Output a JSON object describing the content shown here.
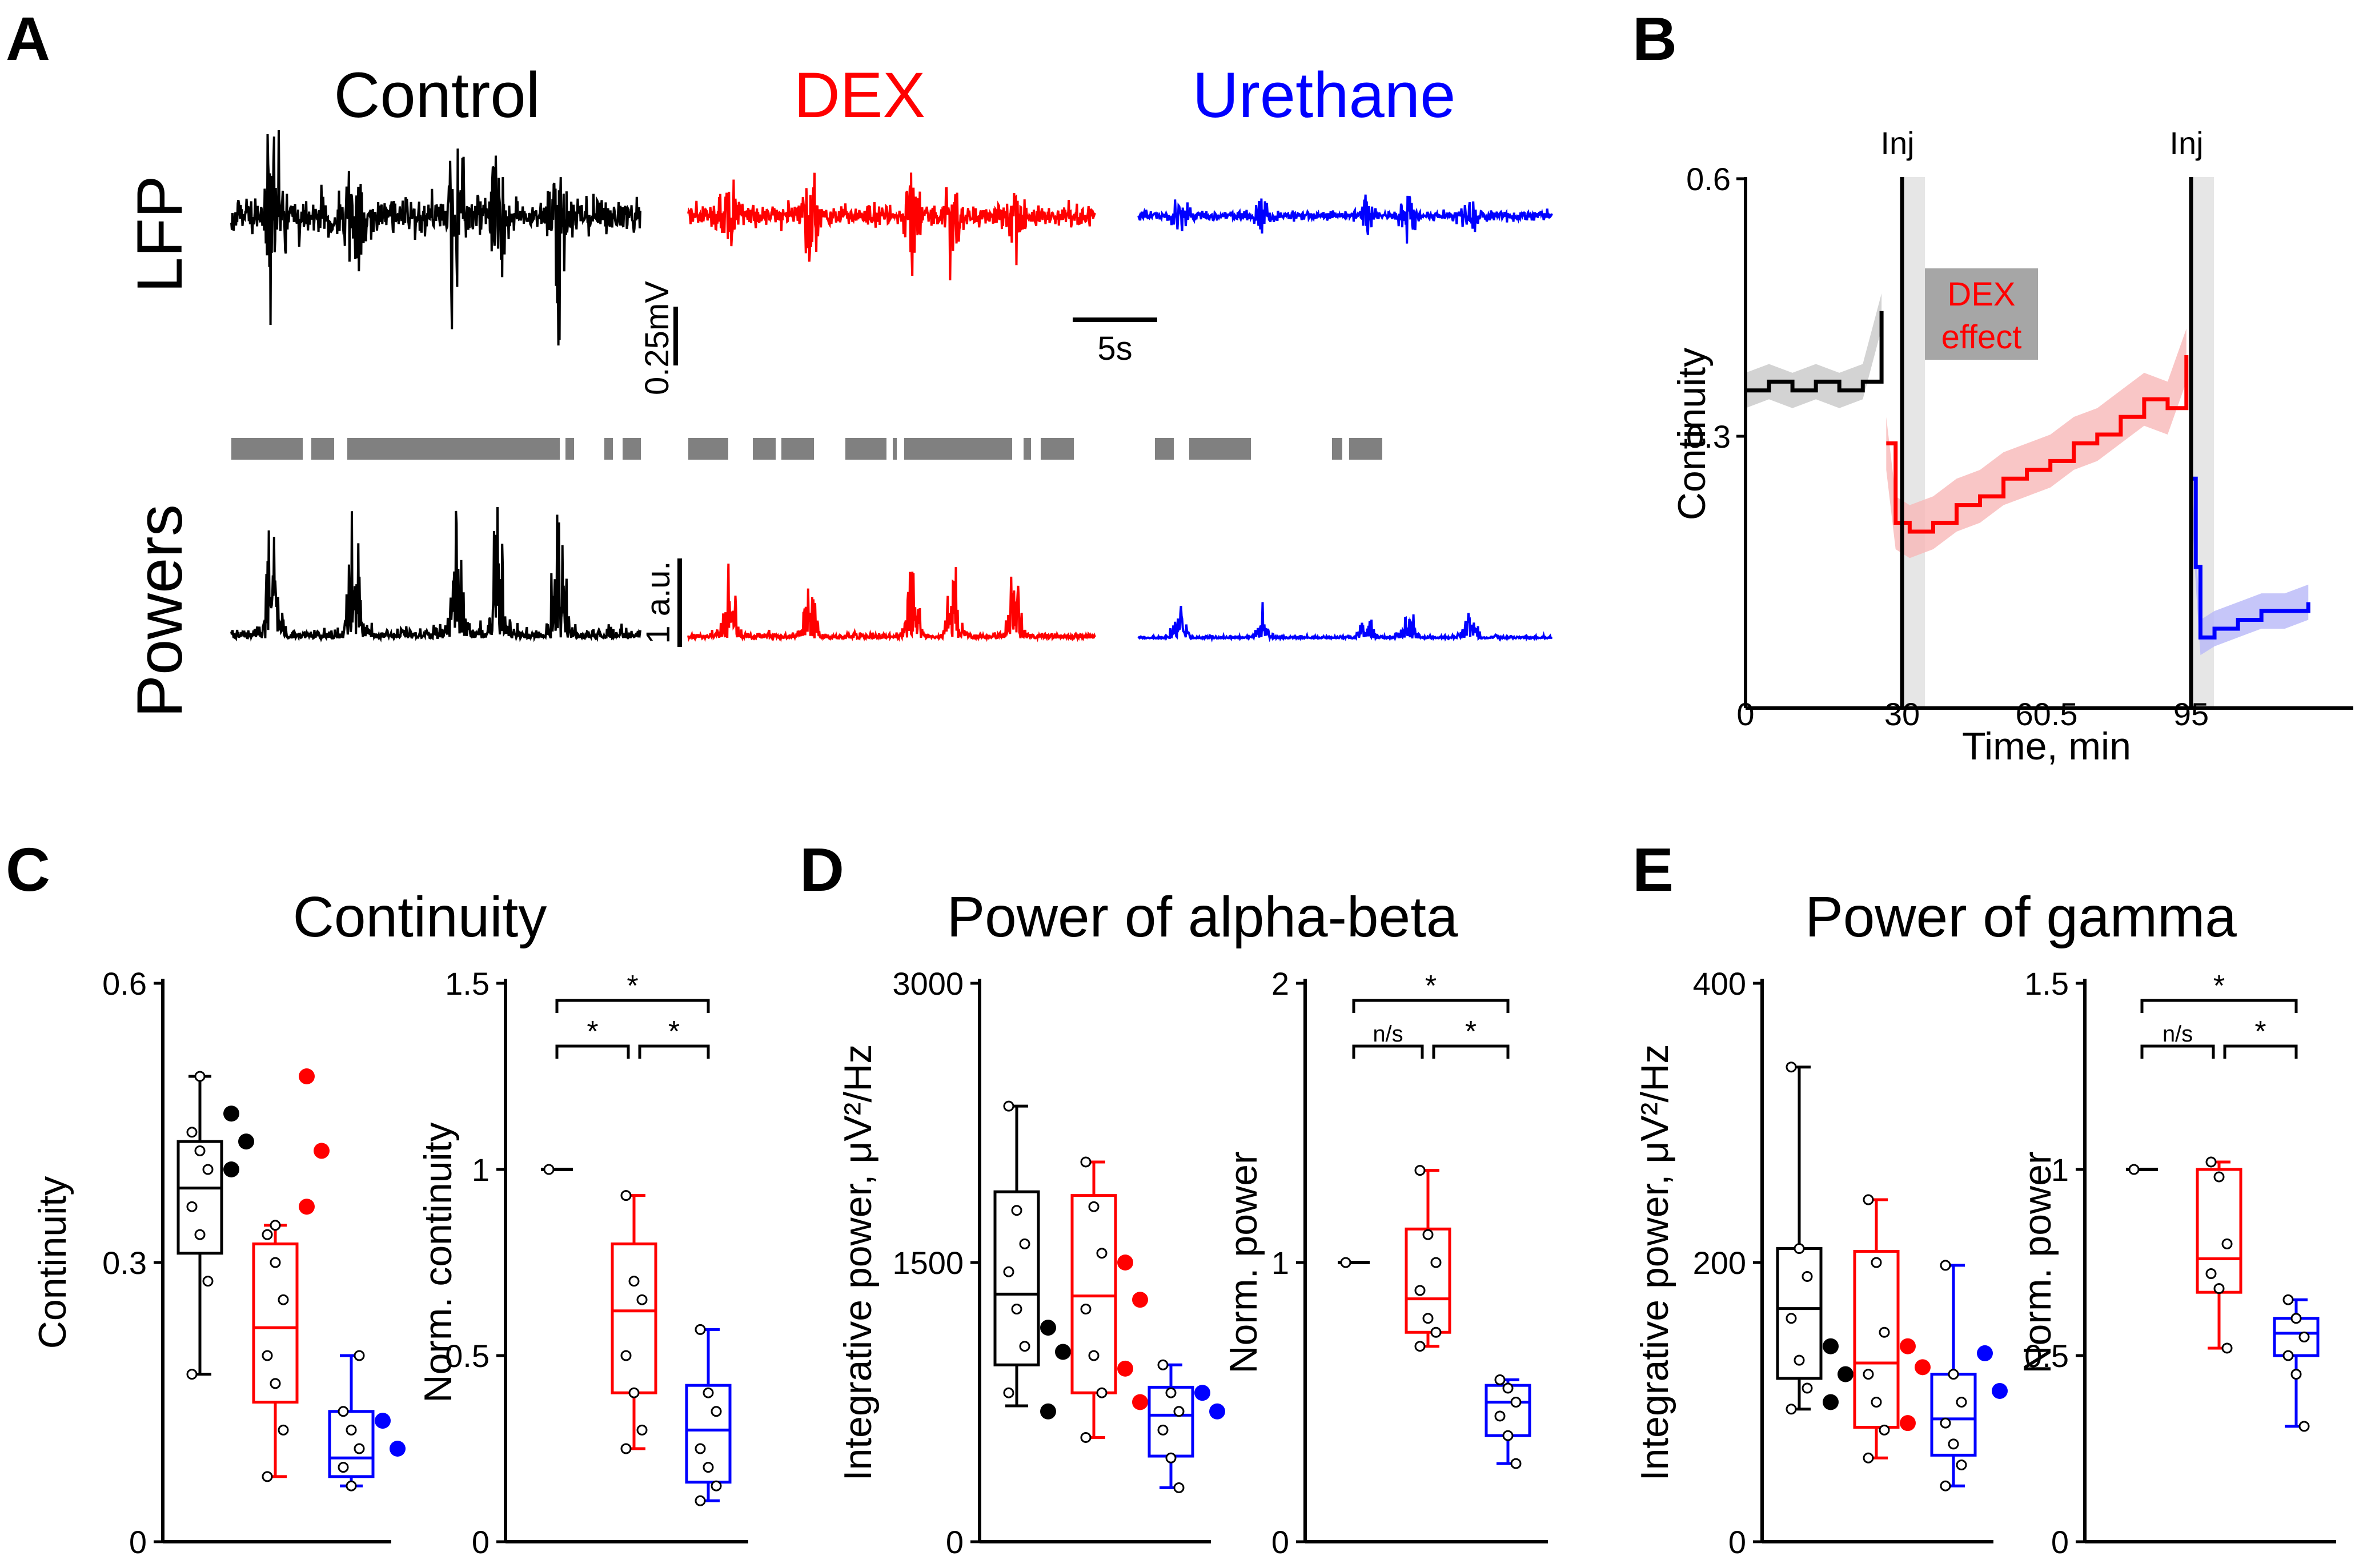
{
  "colors": {
    "control": "#000000",
    "dex": "#ff0000",
    "urethane": "#0000ff",
    "gray": "#808080",
    "shade": "#d9d9d9"
  },
  "panelA": {
    "letter": "A",
    "conditions": [
      "Control",
      "DEX",
      "Urethane"
    ],
    "row_lfp": "LFP",
    "row_powers": "Powers",
    "lfp_scale": "0.25mV",
    "time_scale": "5s",
    "power_scale": "1 a.u."
  },
  "panelB": {
    "letter": "B",
    "ylabel": "Continuity",
    "xlabel": "Time, min",
    "inj_label": "Inj",
    "dex_label_1": "DEX",
    "dex_label_2": "effect",
    "yticks": [
      "0.6",
      "0.3"
    ],
    "xticks": [
      "0",
      "30",
      "60.5",
      "95"
    ]
  },
  "panelC": {
    "letter": "C",
    "title": "Continuity"
  },
  "panelD": {
    "letter": "D",
    "title": "Power of alpha-beta"
  },
  "panelE": {
    "letter": "E",
    "title": "Power of gamma"
  },
  "chart_data": [
    {
      "panel": "B",
      "type": "line",
      "ylabel": "Continuity",
      "xlabel": "Time, min",
      "ylim": [
        0,
        0.6
      ],
      "xticks": [
        0,
        30,
        60.5,
        95
      ],
      "annotations": [
        "Inj",
        "Inj",
        "DEX effect"
      ],
      "series": [
        {
          "name": "Control",
          "x": [
            0,
            5,
            10,
            15,
            20,
            25,
            29
          ],
          "y": [
            0.36,
            0.37,
            0.36,
            0.37,
            0.36,
            0.37,
            0.45
          ]
        },
        {
          "name": "DEX",
          "x": [
            30,
            32,
            35,
            40,
            45,
            50,
            55,
            60,
            65,
            70,
            75,
            80,
            85,
            90,
            94
          ],
          "y": [
            0.3,
            0.21,
            0.2,
            0.21,
            0.23,
            0.24,
            0.26,
            0.27,
            0.28,
            0.3,
            0.31,
            0.33,
            0.35,
            0.34,
            0.4
          ]
        },
        {
          "name": "Urethane",
          "x": [
            95,
            96,
            97,
            100,
            105,
            110,
            115,
            120
          ],
          "y": [
            0.26,
            0.16,
            0.08,
            0.09,
            0.1,
            0.11,
            0.11,
            0.12
          ]
        }
      ]
    },
    {
      "panel": "C-left",
      "type": "box",
      "ylabel": "Continuity",
      "ylim": [
        0,
        0.6
      ],
      "yticks": [
        "0",
        "0.3",
        "0.6"
      ],
      "groups": [
        {
          "name": "Control",
          "min": 0.18,
          "q1": 0.31,
          "median": 0.38,
          "q3": 0.43,
          "max": 0.5,
          "points": [
            0.44,
            0.42,
            0.4,
            0.36,
            0.33,
            0.28,
            0.18,
            0.5
          ],
          "dots": [
            0.46,
            0.43,
            0.4
          ]
        },
        {
          "name": "DEX",
          "min": 0.07,
          "q1": 0.15,
          "median": 0.23,
          "q3": 0.32,
          "max": 0.34,
          "points": [
            0.33,
            0.3,
            0.26,
            0.2,
            0.17,
            0.12,
            0.07,
            0.34
          ],
          "dots": [
            0.5,
            0.42,
            0.36
          ]
        },
        {
          "name": "Urethane",
          "min": 0.06,
          "q1": 0.07,
          "median": 0.09,
          "q3": 0.14,
          "max": 0.2,
          "points": [
            0.14,
            0.12,
            0.1,
            0.08,
            0.06,
            0.2
          ],
          "dots": [
            0.13,
            0.1
          ]
        }
      ]
    },
    {
      "panel": "C-right",
      "type": "box",
      "ylabel": "Norm. continuity",
      "ylim": [
        0,
        1.5
      ],
      "yticks": [
        "0",
        "0.5",
        "1",
        "1.5"
      ],
      "significance": [
        "*",
        "*",
        "*"
      ],
      "groups": [
        {
          "name": "Control",
          "min": 1,
          "q1": 1,
          "median": 1,
          "q3": 1,
          "max": 1,
          "points": [
            1
          ]
        },
        {
          "name": "DEX",
          "min": 0.25,
          "q1": 0.4,
          "median": 0.62,
          "q3": 0.8,
          "max": 0.93,
          "points": [
            0.93,
            0.7,
            0.65,
            0.5,
            0.4,
            0.3,
            0.25
          ]
        },
        {
          "name": "Urethane",
          "min": 0.11,
          "q1": 0.16,
          "median": 0.3,
          "q3": 0.42,
          "max": 0.57,
          "points": [
            0.57,
            0.4,
            0.35,
            0.25,
            0.2,
            0.15,
            0.11
          ]
        }
      ]
    },
    {
      "panel": "D-left",
      "type": "box",
      "ylabel": "Integrative power, μV²/Hz",
      "ylim": [
        0,
        3000
      ],
      "yticks": [
        "0",
        "1500",
        "3000"
      ],
      "groups": [
        {
          "name": "Control",
          "min": 730,
          "q1": 950,
          "median": 1330,
          "q3": 1880,
          "max": 2340,
          "points": [
            2340,
            1780,
            1600,
            1450,
            1250,
            1050,
            800
          ],
          "dots": [
            1150,
            1020,
            700
          ]
        },
        {
          "name": "DEX",
          "min": 560,
          "q1": 800,
          "median": 1320,
          "q3": 1860,
          "max": 2040,
          "points": [
            2040,
            1800,
            1550,
            1250,
            1000,
            800,
            560
          ],
          "dots": [
            1500,
            1300,
            930,
            750
          ]
        },
        {
          "name": "Urethane",
          "min": 290,
          "q1": 460,
          "median": 680,
          "q3": 830,
          "max": 950,
          "points": [
            950,
            800,
            700,
            600,
            450,
            290
          ],
          "dots": [
            800,
            700
          ]
        }
      ]
    },
    {
      "panel": "D-right",
      "type": "box",
      "ylabel": "Norm. power",
      "ylim": [
        0,
        2
      ],
      "yticks": [
        "0",
        "1",
        "2"
      ],
      "significance": [
        "*",
        "n/s",
        "*"
      ],
      "groups": [
        {
          "name": "Control",
          "min": 1,
          "q1": 1,
          "median": 1,
          "q3": 1,
          "max": 1,
          "points": [
            1
          ]
        },
        {
          "name": "DEX",
          "min": 0.7,
          "q1": 0.75,
          "median": 0.87,
          "q3": 1.12,
          "max": 1.33,
          "points": [
            1.33,
            1.1,
            1.0,
            0.9,
            0.8,
            0.75,
            0.7
          ]
        },
        {
          "name": "Urethane",
          "min": 0.28,
          "q1": 0.38,
          "median": 0.5,
          "q3": 0.56,
          "max": 0.58,
          "points": [
            0.58,
            0.55,
            0.5,
            0.45,
            0.38,
            0.28
          ]
        }
      ]
    },
    {
      "panel": "E-left",
      "type": "box",
      "ylabel": "Integrative power, μV²/Hz",
      "ylim": [
        0,
        400
      ],
      "yticks": [
        "0",
        "200",
        "400"
      ],
      "groups": [
        {
          "name": "Control",
          "min": 95,
          "q1": 117,
          "median": 167,
          "q3": 210,
          "max": 340,
          "points": [
            340,
            210,
            190,
            160,
            130,
            110,
            95
          ],
          "dots": [
            140,
            120,
            100
          ]
        },
        {
          "name": "DEX",
          "min": 60,
          "q1": 82,
          "median": 128,
          "q3": 208,
          "max": 245,
          "points": [
            245,
            200,
            150,
            120,
            100,
            80,
            60
          ],
          "dots": [
            140,
            125,
            85
          ]
        },
        {
          "name": "Urethane",
          "min": 40,
          "q1": 62,
          "median": 88,
          "q3": 120,
          "max": 198,
          "points": [
            198,
            120,
            100,
            85,
            70,
            55,
            40
          ],
          "dots": [
            135,
            108
          ]
        }
      ]
    },
    {
      "panel": "E-right",
      "type": "box",
      "ylabel": "Norm. power",
      "ylim": [
        0,
        1.5
      ],
      "yticks": [
        "0",
        "0.5",
        "1",
        "1.5"
      ],
      "significance": [
        "*",
        "n/s",
        "*"
      ],
      "groups": [
        {
          "name": "Control",
          "min": 1,
          "q1": 1,
          "median": 1,
          "q3": 1,
          "max": 1,
          "points": [
            1
          ]
        },
        {
          "name": "DEX",
          "min": 0.52,
          "q1": 0.67,
          "median": 0.76,
          "q3": 1.0,
          "max": 1.02,
          "points": [
            1.02,
            0.98,
            0.8,
            0.72,
            0.68,
            0.52
          ]
        },
        {
          "name": "Urethane",
          "min": 0.31,
          "q1": 0.5,
          "median": 0.56,
          "q3": 0.6,
          "max": 0.65,
          "points": [
            0.65,
            0.6,
            0.55,
            0.5,
            0.45,
            0.31
          ]
        }
      ]
    }
  ]
}
